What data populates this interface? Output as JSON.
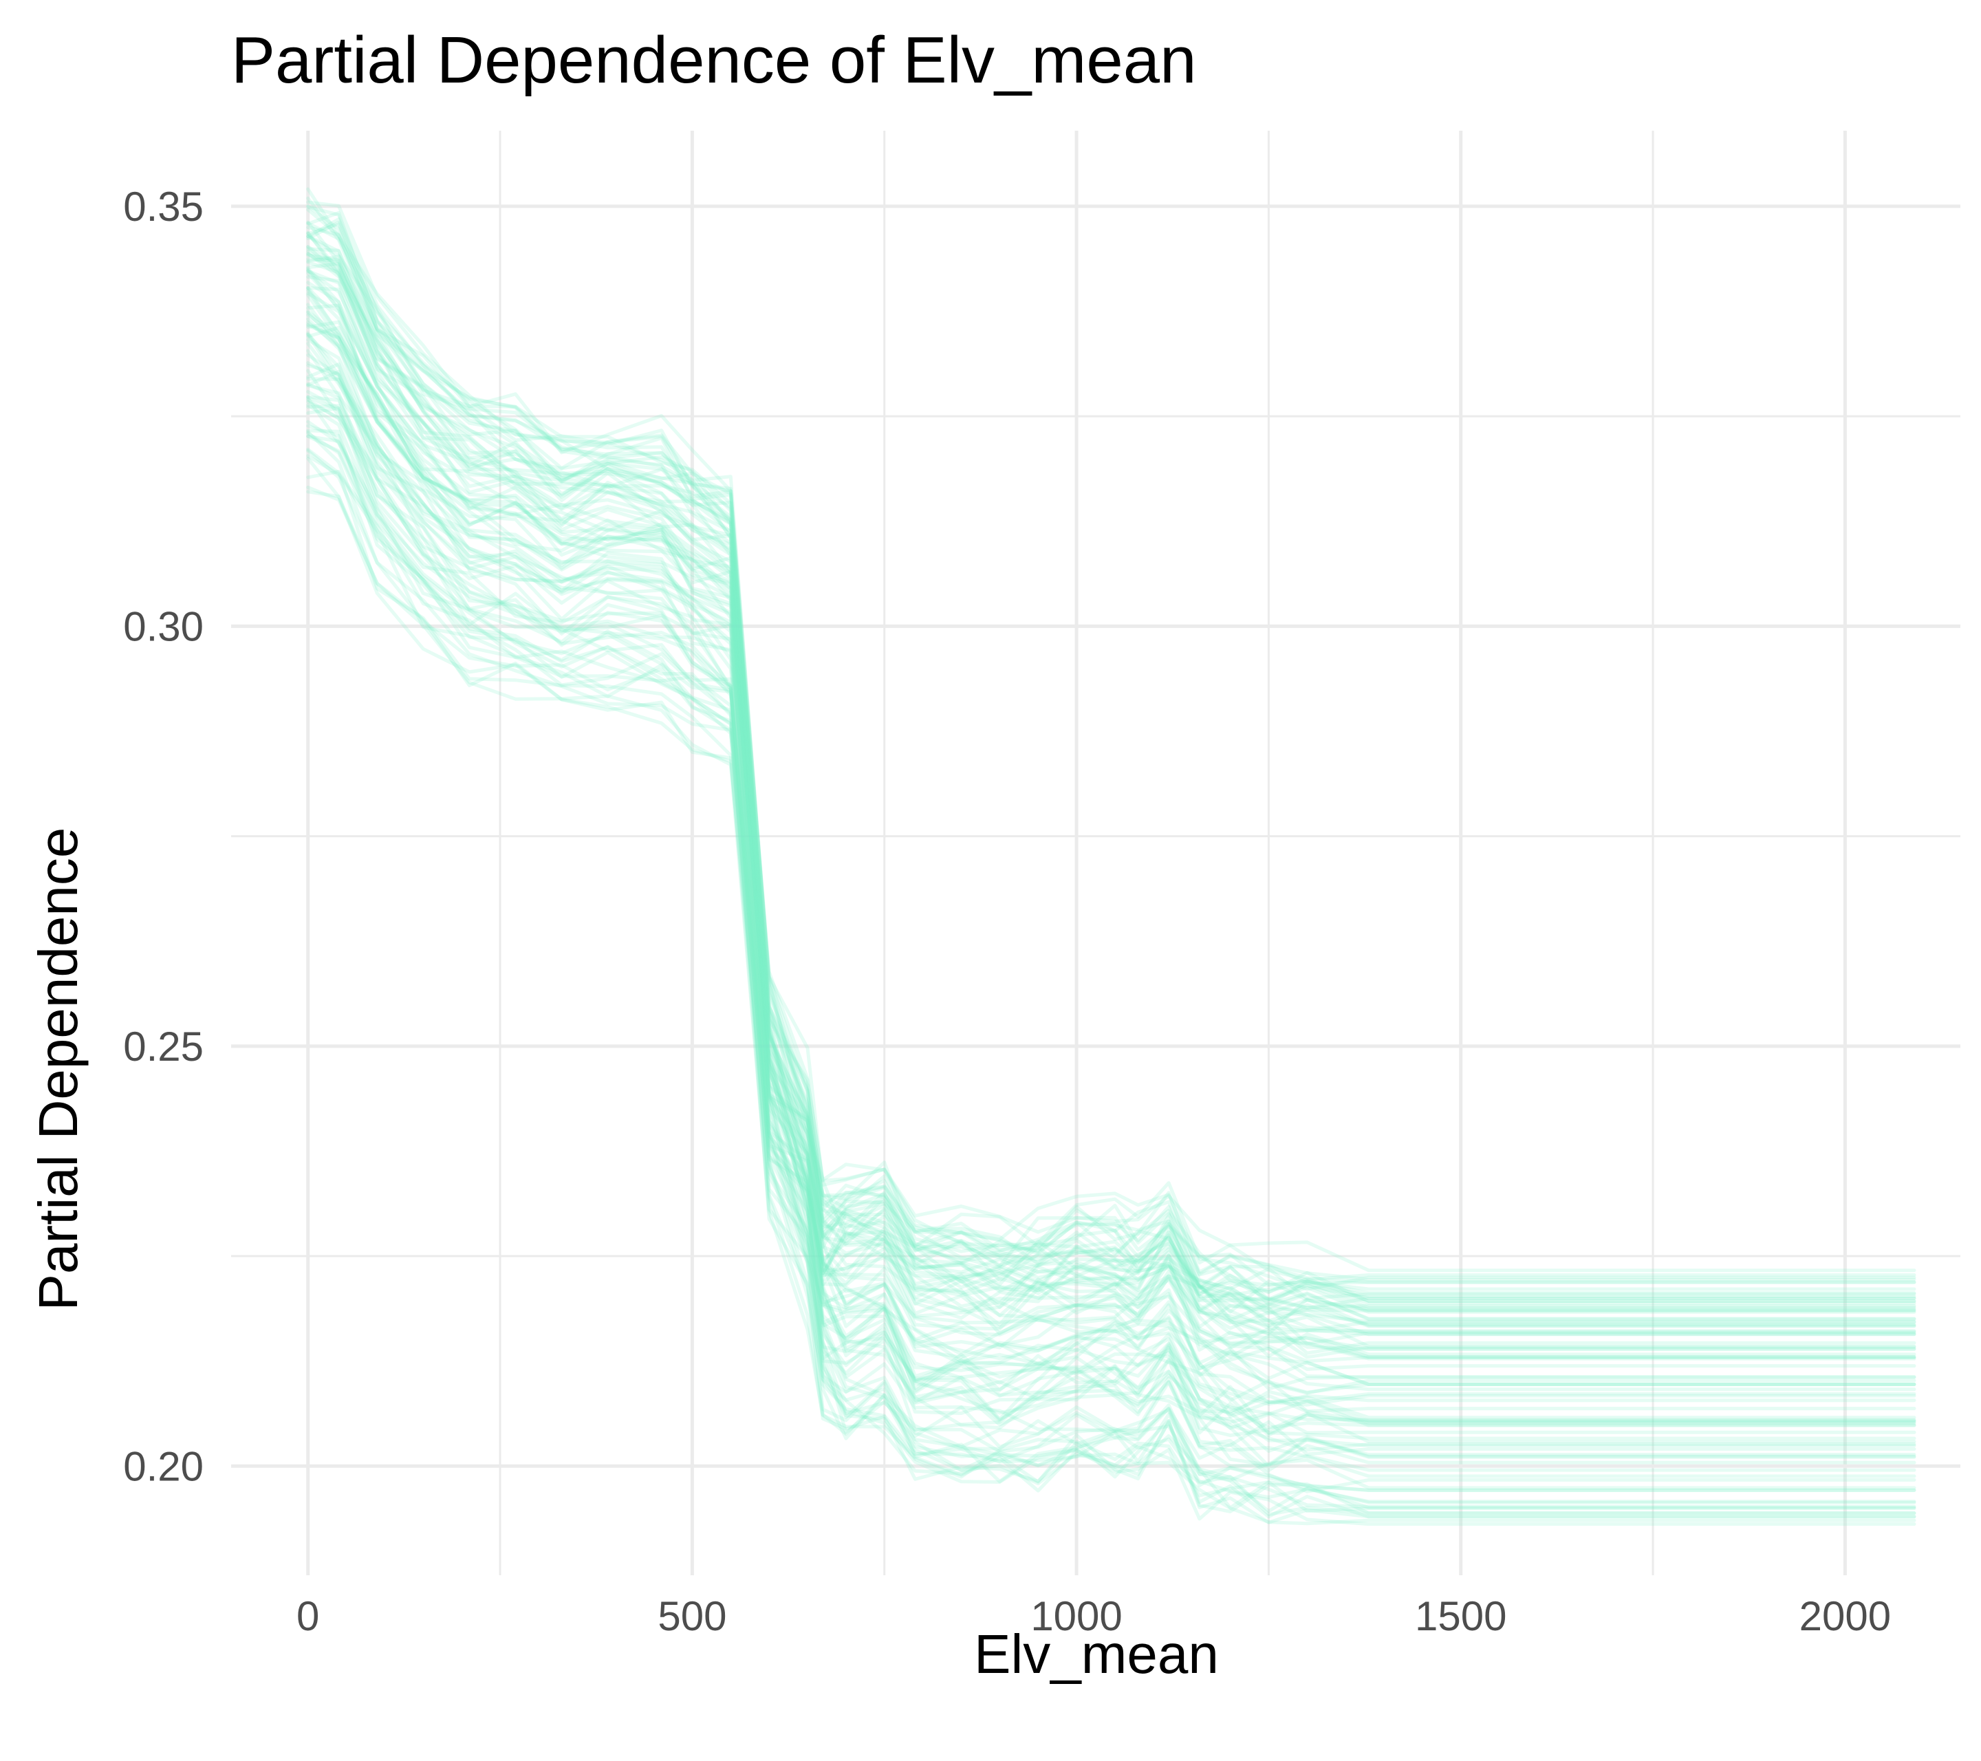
{
  "chart_data": {
    "type": "line",
    "title": "Partial Dependence of Elv_mean",
    "xlabel": "Elv_mean",
    "ylabel": "Partial Dependence",
    "xlim": [
      -100,
      2150
    ],
    "ylim": [
      0.187,
      0.359
    ],
    "x_ticks": [
      0,
      500,
      1000,
      1500,
      2000
    ],
    "x_tick_labels": [
      "0",
      "500",
      "1000",
      "1500",
      "2000"
    ],
    "y_ticks": [
      0.2,
      0.25,
      0.3,
      0.35
    ],
    "y_tick_labels": [
      "0.20",
      "0.25",
      "0.30",
      "0.35"
    ],
    "x_minor_ticks": [
      250,
      750,
      1250,
      1750
    ],
    "y_minor_ticks": [
      0.225,
      0.275,
      0.325
    ],
    "grid": true,
    "legend": "none",
    "line_color": "#7ef2c8",
    "line_opacity": 0.2,
    "x": [
      0,
      40,
      90,
      150,
      210,
      270,
      330,
      390,
      460,
      500,
      550,
      600,
      650,
      670,
      700,
      750,
      790,
      850,
      900,
      950,
      1000,
      1050,
      1080,
      1120,
      1160,
      1200,
      1250,
      1300,
      1380,
      1500,
      1700,
      1900,
      2090
    ],
    "average_curve": [
      0.333,
      0.331,
      0.321,
      0.314,
      0.309,
      0.308,
      0.305,
      0.306,
      0.305,
      0.302,
      0.299,
      0.243,
      0.232,
      0.22,
      0.219,
      0.22,
      0.214,
      0.214,
      0.213,
      0.214,
      0.215,
      0.215,
      0.214,
      0.217,
      0.211,
      0.21,
      0.209,
      0.209,
      0.208,
      0.208,
      0.208,
      0.208,
      0.208
    ],
    "curve_count": 90,
    "spread_range": {
      "left_edge": [
        0.318,
        0.351
      ],
      "right_edge": [
        0.193,
        0.224
      ]
    }
  }
}
